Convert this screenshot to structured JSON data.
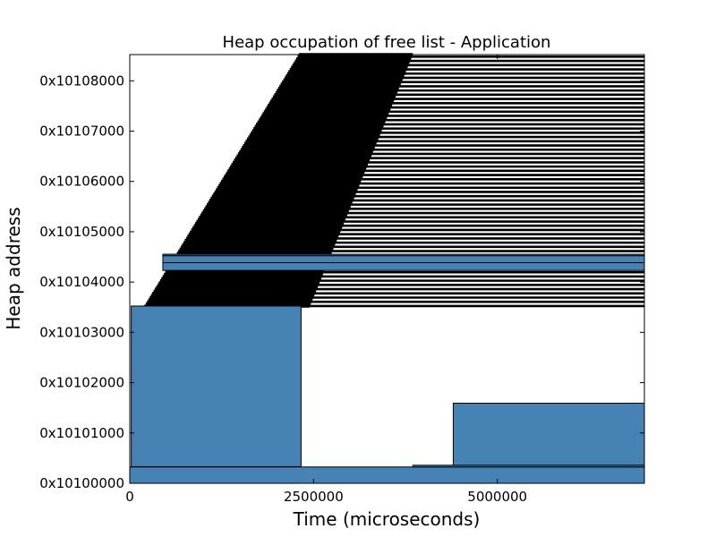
{
  "chart_data": {
    "type": "bar",
    "title": "Heap occupation of free list - Application",
    "xlabel": "Time (microseconds)",
    "ylabel": "Heap address",
    "xlim": [
      0,
      7000000
    ],
    "ylim": [
      0,
      34900
    ],
    "x_ticks": [
      {
        "value": 0,
        "label": "0"
      },
      {
        "value": 2500000,
        "label": "2500000"
      },
      {
        "value": 5000000,
        "label": "5000000"
      }
    ],
    "y_ticks": [
      {
        "value": 0,
        "label": "0x10100000"
      },
      {
        "value": 4096,
        "label": "0x10101000"
      },
      {
        "value": 8192,
        "label": "0x10102000"
      },
      {
        "value": 12288,
        "label": "0x10103000"
      },
      {
        "value": 16384,
        "label": "0x10104000"
      },
      {
        "value": 20480,
        "label": "0x10105000"
      },
      {
        "value": 24576,
        "label": "0x10106000"
      },
      {
        "value": 28672,
        "label": "0x10107000"
      },
      {
        "value": 32768,
        "label": "0x10108000"
      }
    ],
    "bar_color": "#4682b4",
    "edge_color": "#000000",
    "blocks": [
      {
        "start": 20000,
        "end": 2330000,
        "addr_low": 1350,
        "addr_high": 14430
      },
      {
        "start": 4400000,
        "end": 7000000,
        "addr_low": 1400,
        "addr_high": 6520
      },
      {
        "start": 0,
        "end": 7000000,
        "addr_low": 0,
        "addr_high": 1330
      },
      {
        "start": 3850000,
        "end": 7000000,
        "addr_low": 1330,
        "addr_high": 1470
      },
      {
        "start": 450000,
        "end": 7000000,
        "addr_low": 17960,
        "addr_high": 18530
      },
      {
        "start": 450000,
        "end": 7000000,
        "addr_low": 18530,
        "addr_high": 18650
      },
      {
        "start": 450000,
        "end": 7000000,
        "addr_low": 17330,
        "addr_high": 17960
      }
    ],
    "band": {
      "addr_low": 14430,
      "addr_high": 34900,
      "start_at_low": 200000,
      "start_at_high": 2300000,
      "end_at_low": 2450000,
      "end_at_high": 3850000,
      "line_count": 120
    }
  }
}
